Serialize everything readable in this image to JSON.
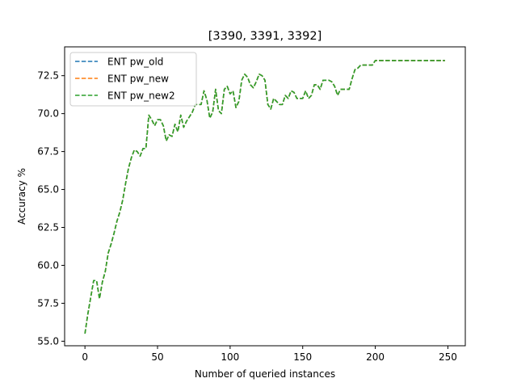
{
  "chart_data": {
    "type": "line",
    "title": "[3390, 3391, 3392]",
    "xlabel": "Number of queried instances",
    "ylabel": "Accuracy %",
    "xlim": [
      -14,
      262
    ],
    "ylim": [
      54.7,
      74.4
    ],
    "xticks": [
      0,
      50,
      100,
      150,
      200,
      250
    ],
    "yticks": [
      55.0,
      57.5,
      60.0,
      62.5,
      65.0,
      67.5,
      70.0,
      72.5
    ],
    "ytick_labels": [
      "55.0",
      "57.5",
      "60.0",
      "62.5",
      "65.0",
      "67.5",
      "70.0",
      "72.5"
    ],
    "grid": false,
    "legend_position": "top-left",
    "x": [
      0,
      2,
      4,
      6,
      8,
      10,
      12,
      14,
      16,
      18,
      20,
      22,
      24,
      26,
      28,
      30,
      32,
      34,
      36,
      38,
      40,
      42,
      44,
      46,
      48,
      50,
      52,
      54,
      56,
      58,
      60,
      62,
      64,
      66,
      68,
      70,
      72,
      74,
      76,
      78,
      80,
      82,
      84,
      86,
      88,
      90,
      92,
      94,
      96,
      98,
      100,
      102,
      104,
      106,
      108,
      110,
      112,
      114,
      116,
      118,
      120,
      122,
      124,
      126,
      128,
      130,
      132,
      134,
      136,
      138,
      140,
      142,
      144,
      146,
      148,
      150,
      152,
      154,
      156,
      158,
      160,
      162,
      164,
      166,
      168,
      170,
      172,
      174,
      176,
      178,
      180,
      182,
      184,
      186,
      188,
      190,
      192,
      194,
      196,
      198,
      200,
      202,
      204,
      206,
      208,
      210,
      212,
      214,
      216,
      218,
      220,
      222,
      224,
      226,
      228,
      230,
      232,
      234,
      236,
      238,
      240,
      242,
      244,
      246,
      248
    ],
    "series": [
      {
        "name": "ENT pw_old",
        "color": "#1f77b4",
        "values": [
          55.5,
          56.8,
          57.9,
          59.0,
          59.0,
          57.8,
          58.9,
          59.6,
          60.8,
          61.4,
          62.1,
          62.9,
          63.5,
          64.3,
          65.4,
          66.4,
          67.1,
          67.6,
          67.5,
          67.2,
          67.7,
          67.7,
          69.9,
          69.6,
          69.2,
          69.6,
          69.6,
          69.2,
          68.2,
          68.6,
          68.5,
          69.3,
          68.8,
          69.9,
          69.1,
          69.5,
          69.8,
          70.1,
          70.6,
          70.6,
          70.6,
          71.5,
          70.9,
          69.7,
          70.1,
          71.6,
          70.2,
          70.0,
          71.6,
          71.8,
          71.3,
          71.5,
          70.4,
          70.8,
          72.2,
          72.6,
          72.4,
          71.9,
          71.7,
          72.1,
          72.6,
          72.5,
          72.2,
          70.6,
          70.3,
          71.0,
          70.8,
          70.6,
          70.6,
          71.2,
          71.0,
          71.5,
          71.4,
          71.0,
          71.0,
          71.0,
          71.5,
          71.0,
          71.2,
          71.9,
          71.9,
          71.6,
          72.2,
          72.2,
          72.2,
          72.1,
          71.8,
          71.2,
          71.6,
          71.6,
          71.6,
          71.6,
          72.3,
          72.9,
          73.0,
          73.2,
          73.2,
          73.2,
          73.2,
          73.2,
          73.5,
          73.5,
          73.5,
          73.5,
          73.5,
          73.5,
          73.5,
          73.5,
          73.5,
          73.5,
          73.5,
          73.5,
          73.5,
          73.5,
          73.5,
          73.5,
          73.5,
          73.5,
          73.5,
          73.5,
          73.5,
          73.5,
          73.5,
          73.5,
          73.5
        ]
      },
      {
        "name": "ENT pw_new",
        "color": "#ff7f0e",
        "values": [
          55.5,
          56.8,
          57.9,
          59.0,
          59.0,
          57.8,
          58.9,
          59.6,
          60.8,
          61.4,
          62.1,
          62.9,
          63.5,
          64.3,
          65.4,
          66.4,
          67.1,
          67.6,
          67.5,
          67.2,
          67.7,
          67.7,
          69.9,
          69.6,
          69.2,
          69.6,
          69.6,
          69.2,
          68.2,
          68.6,
          68.5,
          69.3,
          68.8,
          69.9,
          69.1,
          69.5,
          69.8,
          70.1,
          70.6,
          70.6,
          70.6,
          71.5,
          70.9,
          69.7,
          70.1,
          71.6,
          70.2,
          70.0,
          71.6,
          71.8,
          71.3,
          71.5,
          70.4,
          70.8,
          72.2,
          72.6,
          72.4,
          71.9,
          71.7,
          72.1,
          72.6,
          72.5,
          72.2,
          70.6,
          70.3,
          71.0,
          70.8,
          70.6,
          70.6,
          71.2,
          71.0,
          71.5,
          71.4,
          71.0,
          71.0,
          71.0,
          71.5,
          71.0,
          71.2,
          71.9,
          71.9,
          71.6,
          72.2,
          72.2,
          72.2,
          72.1,
          71.8,
          71.2,
          71.6,
          71.6,
          71.6,
          71.6,
          72.3,
          72.9,
          73.0,
          73.2,
          73.2,
          73.2,
          73.2,
          73.2,
          73.5,
          73.5,
          73.5,
          73.5,
          73.5,
          73.5,
          73.5,
          73.5,
          73.5,
          73.5,
          73.5,
          73.5,
          73.5,
          73.5,
          73.5,
          73.5,
          73.5,
          73.5,
          73.5,
          73.5,
          73.5,
          73.5,
          73.5,
          73.5,
          73.5
        ]
      },
      {
        "name": "ENT pw_new2",
        "color": "#2ca02c",
        "values": [
          55.5,
          56.8,
          57.9,
          59.0,
          59.0,
          57.8,
          58.9,
          59.6,
          60.8,
          61.4,
          62.1,
          62.9,
          63.5,
          64.3,
          65.4,
          66.4,
          67.1,
          67.6,
          67.5,
          67.2,
          67.7,
          67.7,
          69.9,
          69.6,
          69.2,
          69.6,
          69.6,
          69.2,
          68.2,
          68.6,
          68.5,
          69.3,
          68.8,
          69.9,
          69.1,
          69.5,
          69.8,
          70.1,
          70.6,
          70.6,
          70.6,
          71.5,
          70.9,
          69.7,
          70.1,
          71.6,
          70.2,
          70.0,
          71.6,
          71.8,
          71.3,
          71.5,
          70.4,
          70.8,
          72.2,
          72.6,
          72.4,
          71.9,
          71.7,
          72.1,
          72.6,
          72.5,
          72.2,
          70.6,
          70.3,
          71.0,
          70.8,
          70.6,
          70.6,
          71.2,
          71.0,
          71.5,
          71.4,
          71.0,
          71.0,
          71.0,
          71.5,
          71.0,
          71.2,
          71.9,
          71.9,
          71.6,
          72.2,
          72.2,
          72.2,
          72.1,
          71.8,
          71.2,
          71.6,
          71.6,
          71.6,
          71.6,
          72.3,
          72.9,
          73.0,
          73.2,
          73.2,
          73.2,
          73.2,
          73.2,
          73.5,
          73.5,
          73.5,
          73.5,
          73.5,
          73.5,
          73.5,
          73.5,
          73.5,
          73.5,
          73.5,
          73.5,
          73.5,
          73.5,
          73.5,
          73.5,
          73.5,
          73.5,
          73.5,
          73.5,
          73.5,
          73.5,
          73.5,
          73.5,
          73.5
        ]
      }
    ]
  }
}
